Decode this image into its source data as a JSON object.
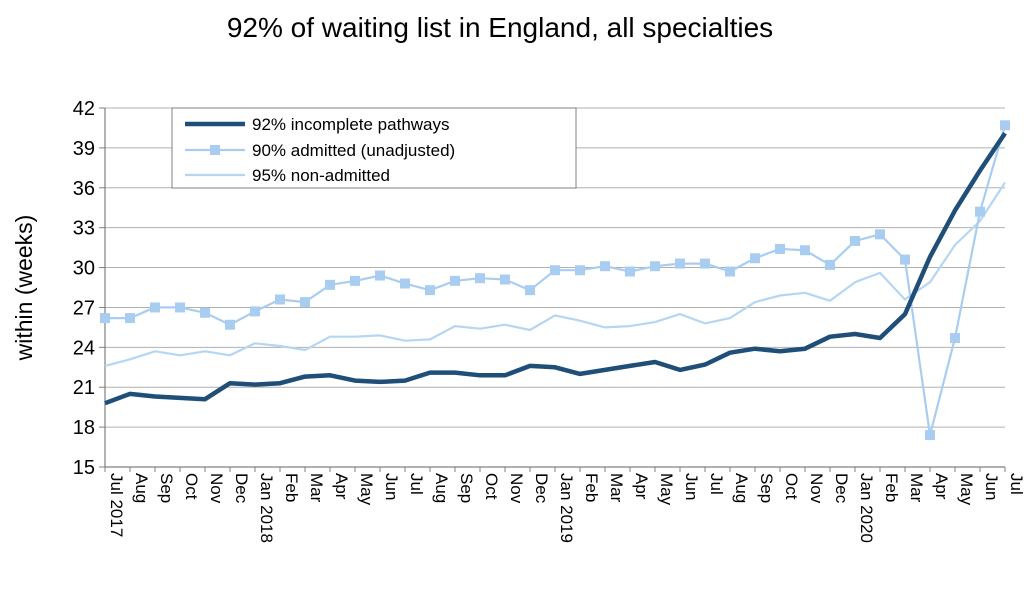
{
  "chart_data": {
    "type": "line",
    "title": "92% of waiting list in England, all specialties",
    "ylabel": "within  (weeks)",
    "xlabel": "",
    "ylim": [
      15,
      42
    ],
    "yticks": [
      15,
      18,
      21,
      24,
      27,
      30,
      33,
      36,
      39,
      42
    ],
    "grid": true,
    "legend_position": "top-left",
    "categories": [
      "Jul 2017",
      "Aug",
      "Sep",
      "Oct",
      "Nov",
      "Dec",
      "Jan 2018",
      "Feb",
      "Mar",
      "Apr",
      "May",
      "Jun",
      "Jul",
      "Aug",
      "Sep",
      "Oct",
      "Nov",
      "Dec",
      "Jan 2019",
      "Feb",
      "Mar",
      "Apr",
      "May",
      "Jun",
      "Jul",
      "Aug",
      "Sep",
      "Oct",
      "Nov",
      "Dec",
      "Jan 2020",
      "Feb",
      "Mar",
      "Apr",
      "May",
      "Jun",
      "Jul"
    ],
    "series": [
      {
        "name": "92% incomplete pathways",
        "color": "#1f4e79",
        "values": [
          19.8,
          20.5,
          20.3,
          20.2,
          20.1,
          21.3,
          21.2,
          21.3,
          21.8,
          21.9,
          21.5,
          21.4,
          21.5,
          22.1,
          22.1,
          21.9,
          21.9,
          22.6,
          22.5,
          22.0,
          22.3,
          22.6,
          22.9,
          22.3,
          22.7,
          23.6,
          23.9,
          23.7,
          23.9,
          24.8,
          25.0,
          24.7,
          26.5,
          30.8,
          34.3,
          37.3,
          40.1
        ]
      },
      {
        "name": "90% admitted (unadjusted)",
        "color": "#a9cdf0",
        "values": [
          26.2,
          26.2,
          27.0,
          27.0,
          26.6,
          25.7,
          26.7,
          27.6,
          27.4,
          28.7,
          29.0,
          29.4,
          28.8,
          28.3,
          29.0,
          29.2,
          29.1,
          28.3,
          29.8,
          29.8,
          30.1,
          29.7,
          30.1,
          30.3,
          30.3,
          29.7,
          30.7,
          31.4,
          31.3,
          30.2,
          32.0,
          32.5,
          30.6,
          17.4,
          24.7,
          34.2,
          40.7
        ]
      },
      {
        "name": "95% non-admitted",
        "color": "#b4d6f3",
        "values": [
          22.6,
          23.1,
          23.7,
          23.4,
          23.7,
          23.4,
          24.3,
          24.1,
          23.8,
          24.8,
          24.8,
          24.9,
          24.5,
          24.6,
          25.6,
          25.4,
          25.7,
          25.3,
          26.4,
          26.0,
          25.5,
          25.6,
          25.9,
          26.5,
          25.8,
          26.2,
          27.4,
          27.9,
          28.1,
          27.5,
          28.9,
          29.6,
          27.6,
          28.9,
          31.7,
          33.5,
          36.4
        ]
      }
    ]
  }
}
